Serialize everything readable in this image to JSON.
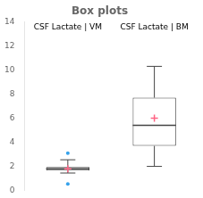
{
  "chart_data": {
    "type": "box",
    "title": "Box plots",
    "categories": [
      "CSF Lactate | VM",
      "CSF Lactate | BM"
    ],
    "boxes": [
      {
        "q1": 1.65,
        "median": 1.8,
        "q3": 1.95,
        "whisker_low": 1.45,
        "whisker_high": 2.55,
        "mean": 1.8,
        "fliers": [
          0.55,
          3.1
        ]
      },
      {
        "q1": 3.7,
        "median": 5.4,
        "q3": 7.7,
        "whisker_low": 2.0,
        "whisker_high": 10.3,
        "mean": 6.0,
        "fliers": []
      }
    ],
    "ylim": [
      0,
      14
    ],
    "yticks": [
      0,
      2,
      4,
      6,
      8,
      10,
      12,
      14
    ],
    "grid": false,
    "tick_labels": "y"
  }
}
